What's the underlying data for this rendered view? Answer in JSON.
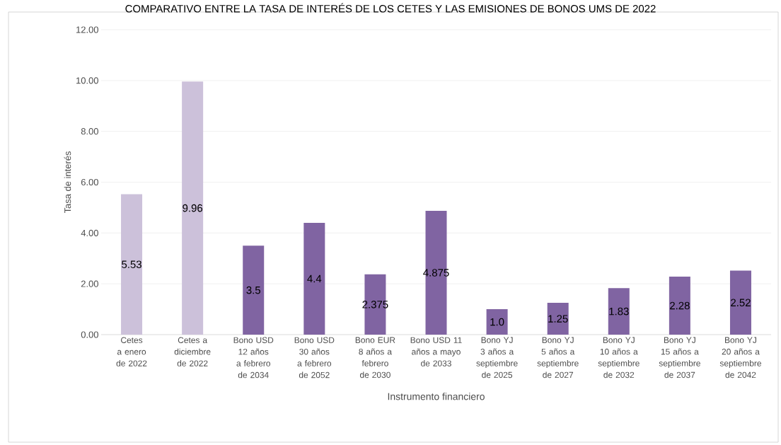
{
  "chart_data": {
    "type": "bar",
    "title": "COMPARATIVO ENTRE LA TASA DE INTERÉS DE LOS CETES Y LAS EMISIONES DE BONOS UMS DE 2022",
    "xlabel": "Instrumento financiero",
    "ylabel": "Tasa de interés",
    "categories": [
      "Cetes a enero de 2022",
      "Cetes a diciembre de 2022",
      "Bono USD 12 años a febrero de 2034",
      "Bono USD 30 años a febrero de 2052",
      "Bono EUR 8 años a febrero de 2030",
      "Bono USD 11 años a mayo de 2033",
      "Bono YJ 3 años a septiembre de 2025",
      "Bono YJ 5 años a septiembre de 2027",
      "Bono YJ 10 años a septiembre de 2032",
      "Bono YJ 15 años a septiembre de 2037",
      "Bono YJ 20 años a septiembre de 2042"
    ],
    "values": [
      5.53,
      9.96,
      3.5,
      4.4,
      2.375,
      4.875,
      1.0,
      1.25,
      1.83,
      2.28,
      2.52
    ],
    "value_labels": [
      "5.53",
      "9.96",
      "3.5",
      "4.4",
      "2.375",
      "4.875",
      "1.0",
      "1.25",
      "1.83",
      "2.28",
      "2.52"
    ],
    "colors": [
      "#ccc1da",
      "#ccc1da",
      "#8064a2",
      "#8064a2",
      "#8064a2",
      "#8064a2",
      "#8064a2",
      "#8064a2",
      "#8064a2",
      "#8064a2",
      "#8064a2"
    ],
    "ylim": [
      0,
      12
    ],
    "yticks": [
      {
        "value": 0,
        "label": "0.00"
      },
      {
        "value": 2,
        "label": "2.00"
      },
      {
        "value": 4,
        "label": "4.00"
      },
      {
        "value": 6,
        "label": "6.00"
      },
      {
        "value": 8,
        "label": "8.00"
      },
      {
        "value": 10,
        "label": "10.00"
      },
      {
        "value": 12,
        "label": "12.00"
      }
    ],
    "grid": "y"
  }
}
